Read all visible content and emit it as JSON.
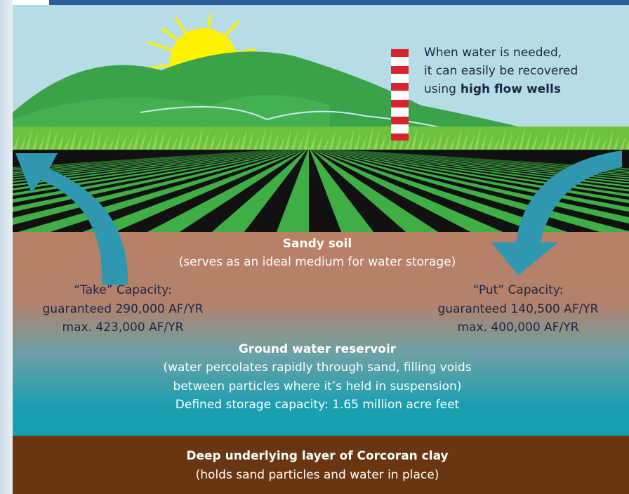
{
  "well_note": {
    "lines": [
      "When water is needed,",
      "it can easily be recovered",
      "using"
    ],
    "bold": "high flow wells"
  },
  "sandy_soil": {
    "title": "Sandy soil",
    "description": "(serves as an ideal medium for water storage)"
  },
  "take_capacity": {
    "title": "“Take” Capacity:",
    "guaranteed": "guaranteed 290,000 AF/YR",
    "max": "max. 423,000 AF/YR"
  },
  "put_capacity": {
    "title": "“Put” Capacity:",
    "guaranteed": "guaranteed 140,500 AF/YR",
    "max": "max. 400,000 AF/YR"
  },
  "reservoir": {
    "title": "Ground water reservoir",
    "lines": [
      "(water percolates rapidly through sand, filling voids",
      "between particles where it’s held in suspension)",
      "Defined storage capacity: 1.65 million acre feet"
    ]
  },
  "clay": {
    "title": "Deep underlying layer of Corcoran clay",
    "description": "(holds sand particles and water in place)"
  }
}
